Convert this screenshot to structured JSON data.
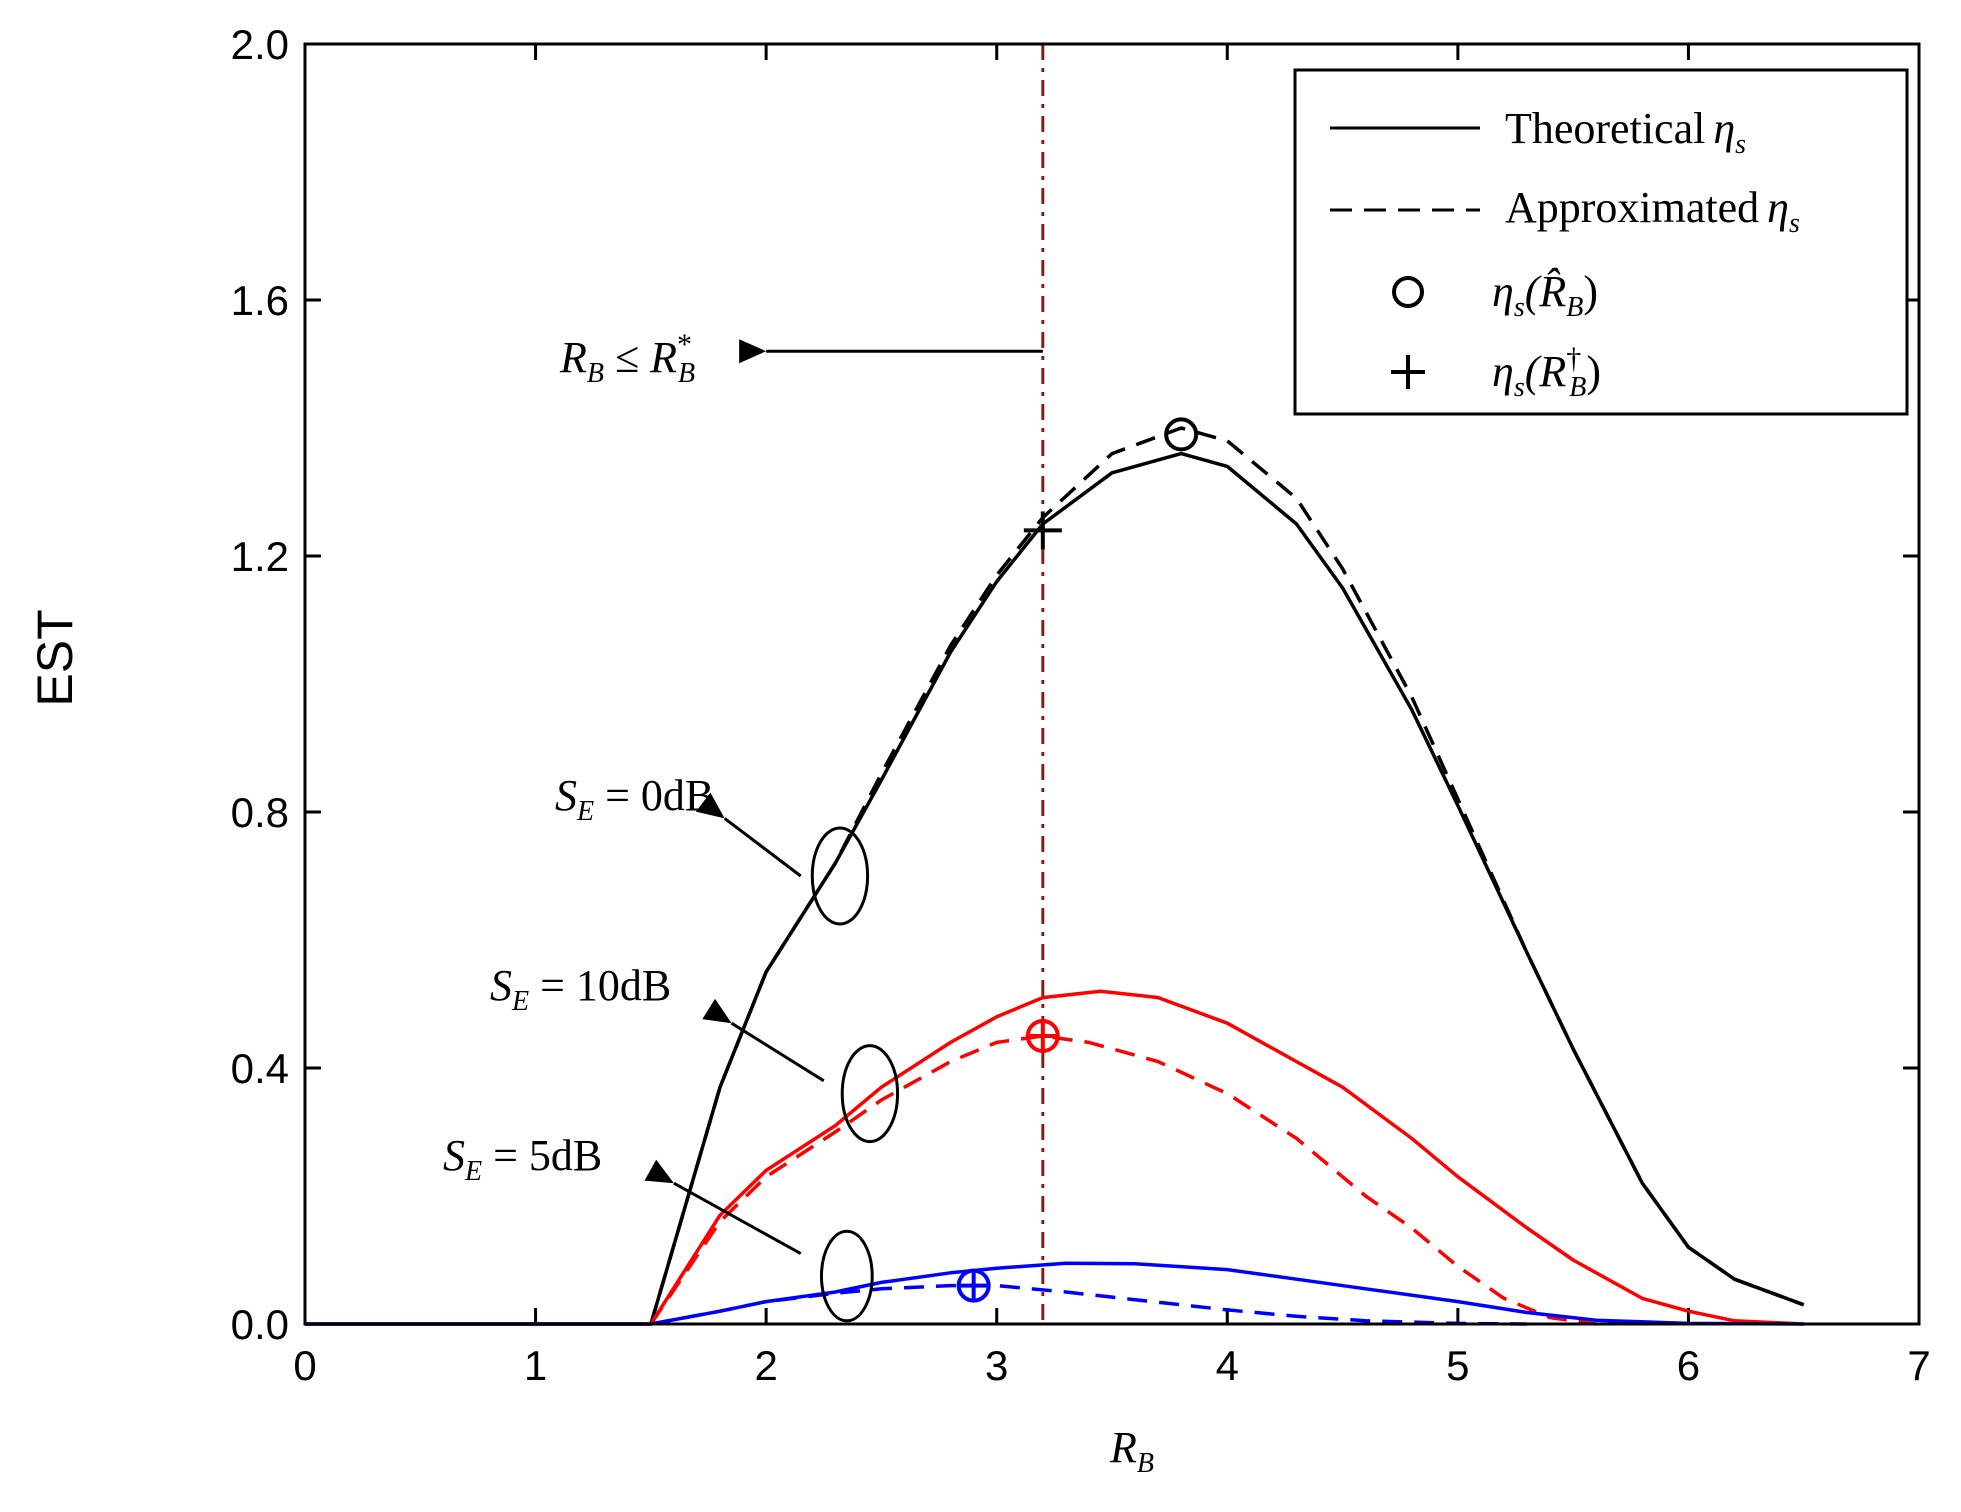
{
  "chart_data": {
    "type": "line",
    "title": "",
    "xlabel": "R",
    "xlabel_sub": "B",
    "ylabel": "EST",
    "xlim": [
      0,
      7
    ],
    "ylim": [
      0.0,
      2.0
    ],
    "x_ticks": [
      0,
      1,
      2,
      3,
      4,
      5,
      6,
      7
    ],
    "x_tick_labels": [
      "0",
      "1",
      "2",
      "3",
      "4",
      "5",
      "6",
      "7"
    ],
    "y_ticks": [
      0.0,
      0.4,
      0.8,
      1.2,
      1.6,
      2.0
    ],
    "y_tick_labels": [
      "0.0",
      "0.4",
      "0.8",
      "1.2",
      "1.6",
      "2.0"
    ],
    "grid": false,
    "legend_position": "top-right",
    "legend": [
      {
        "label": "Theoretical",
        "symbol": "η",
        "sub": "s",
        "arg": "",
        "marker": "solid-line"
      },
      {
        "label": "Approximated",
        "symbol": "η",
        "sub": "s",
        "arg": "",
        "marker": "dashed-line"
      },
      {
        "label": "",
        "symbol": "η",
        "sub": "s",
        "arg": "(R̂",
        "arg_sub": "B",
        "arg_close": ")",
        "marker": "circle"
      },
      {
        "label": "",
        "symbol": "η",
        "sub": "s",
        "arg": "(R",
        "arg_sup": "†",
        "arg_sub": "B",
        "arg_close": ")",
        "marker": "plus"
      }
    ],
    "colors": {
      "black": "#000000",
      "red": "#ff0000",
      "blue": "#0000ff",
      "vline": "#8b1a1a"
    },
    "series": [
      {
        "name": "Theoretical SE=0dB",
        "color": "#000000",
        "style": "solid",
        "x": [
          0,
          1.5,
          1.8,
          2.0,
          2.3,
          2.5,
          2.8,
          3.0,
          3.2,
          3.5,
          3.8,
          4.0,
          4.3,
          4.5,
          4.8,
          5.0,
          5.3,
          5.5,
          5.8,
          6.0,
          6.2,
          6.5
        ],
        "y": [
          0,
          0,
          0.37,
          0.55,
          0.72,
          0.85,
          1.05,
          1.16,
          1.25,
          1.33,
          1.36,
          1.34,
          1.25,
          1.15,
          0.96,
          0.81,
          0.58,
          0.43,
          0.22,
          0.12,
          0.07,
          0.03
        ]
      },
      {
        "name": "Approximated SE=0dB",
        "color": "#000000",
        "style": "dashed",
        "x": [
          1.5,
          1.8,
          2.0,
          2.3,
          2.5,
          2.8,
          3.0,
          3.2,
          3.5,
          3.8,
          4.0,
          4.3,
          4.5,
          4.8,
          5.0,
          5.3,
          5.5,
          5.8,
          6.0,
          6.2,
          6.5
        ],
        "y": [
          0,
          0.37,
          0.55,
          0.72,
          0.86,
          1.06,
          1.17,
          1.26,
          1.36,
          1.4,
          1.38,
          1.29,
          1.18,
          0.98,
          0.82,
          0.58,
          0.43,
          0.22,
          0.12,
          0.07,
          0.03
        ]
      },
      {
        "name": "Theoretical SE=10dB",
        "color": "#ff0000",
        "style": "solid",
        "x": [
          0,
          1.5,
          1.8,
          2.0,
          2.3,
          2.5,
          2.8,
          3.0,
          3.2,
          3.45,
          3.7,
          4.0,
          4.3,
          4.5,
          4.8,
          5.0,
          5.3,
          5.5,
          5.8,
          6.0,
          6.2,
          6.5
        ],
        "y": [
          0,
          0,
          0.17,
          0.24,
          0.31,
          0.37,
          0.44,
          0.48,
          0.51,
          0.52,
          0.51,
          0.47,
          0.41,
          0.37,
          0.29,
          0.23,
          0.15,
          0.1,
          0.04,
          0.02,
          0.005,
          0
        ]
      },
      {
        "name": "Approximated SE=10dB",
        "color": "#ff0000",
        "style": "dashed",
        "x": [
          1.5,
          1.8,
          2.0,
          2.3,
          2.5,
          2.8,
          3.0,
          3.2,
          3.4,
          3.7,
          4.0,
          4.3,
          4.6,
          4.8,
          5.0,
          5.2,
          5.4,
          5.6
        ],
        "y": [
          0,
          0.16,
          0.23,
          0.3,
          0.35,
          0.41,
          0.44,
          0.45,
          0.44,
          0.41,
          0.36,
          0.29,
          0.2,
          0.15,
          0.09,
          0.04,
          0.01,
          0
        ]
      },
      {
        "name": "Theoretical SE=5dB",
        "color": "#0000ff",
        "style": "solid",
        "x": [
          0,
          1.5,
          1.8,
          2.0,
          2.3,
          2.5,
          2.8,
          3.0,
          3.3,
          3.6,
          4.0,
          4.3,
          4.6,
          5.0,
          5.3,
          5.6,
          6.0,
          6.5
        ],
        "y": [
          0,
          0,
          0.02,
          0.035,
          0.05,
          0.065,
          0.08,
          0.087,
          0.095,
          0.094,
          0.085,
          0.07,
          0.055,
          0.035,
          0.018,
          0.006,
          0.001,
          0
        ]
      },
      {
        "name": "Approximated SE=5dB",
        "color": "#0000ff",
        "style": "dashed",
        "x": [
          1.5,
          1.8,
          2.0,
          2.3,
          2.5,
          2.8,
          3.0,
          3.3,
          3.6,
          4.0,
          4.3,
          4.6,
          5.0,
          5.3
        ],
        "y": [
          0,
          0.02,
          0.035,
          0.048,
          0.055,
          0.06,
          0.06,
          0.05,
          0.038,
          0.022,
          0.012,
          0.005,
          0.001,
          0
        ]
      }
    ],
    "markers": [
      {
        "type": "circle",
        "x": 3.8,
        "y": 1.39,
        "color": "#000000"
      },
      {
        "type": "plus",
        "x": 3.2,
        "y": 1.24,
        "color": "#000000"
      },
      {
        "type": "circle-plus",
        "x": 3.2,
        "y": 0.45,
        "color": "#ff0000"
      },
      {
        "type": "circle-plus",
        "x": 2.9,
        "y": 0.06,
        "color": "#0000ff"
      }
    ],
    "vertical_line": {
      "x": 3.2,
      "color": "#8b1a1a",
      "style": "dash-dot"
    },
    "annotations": [
      {
        "id": "rb",
        "main": "R",
        "sub": "B",
        "op": " ≤ ",
        "main2": "R",
        "sup2": "*",
        "sub2": "B",
        "arrow_from": [
          3.2,
          1.52
        ],
        "arrow_to": [
          2.0,
          1.52
        ]
      },
      {
        "id": "se0",
        "main": "S",
        "sub": "E",
        "eq": " = 0dB",
        "arrow_from": [
          2.15,
          0.7
        ],
        "arrow_to": [
          1.82,
          0.79
        ],
        "ellipse_center": [
          2.32,
          0.7
        ],
        "ellipse_r": [
          0.12,
          0.075
        ]
      },
      {
        "id": "se10",
        "main": "S",
        "sub": "E",
        "eq": " = 10dB",
        "arrow_from": [
          2.25,
          0.38
        ],
        "arrow_to": [
          1.85,
          0.47
        ],
        "ellipse_center": [
          2.45,
          0.36
        ],
        "ellipse_r": [
          0.12,
          0.075
        ]
      },
      {
        "id": "se5",
        "main": "S",
        "sub": "E",
        "eq": " = 5dB",
        "arrow_from": [
          2.15,
          0.11
        ],
        "arrow_to": [
          1.6,
          0.22
        ],
        "ellipse_center": [
          2.35,
          0.075
        ],
        "ellipse_r": [
          0.11,
          0.07
        ]
      }
    ]
  }
}
